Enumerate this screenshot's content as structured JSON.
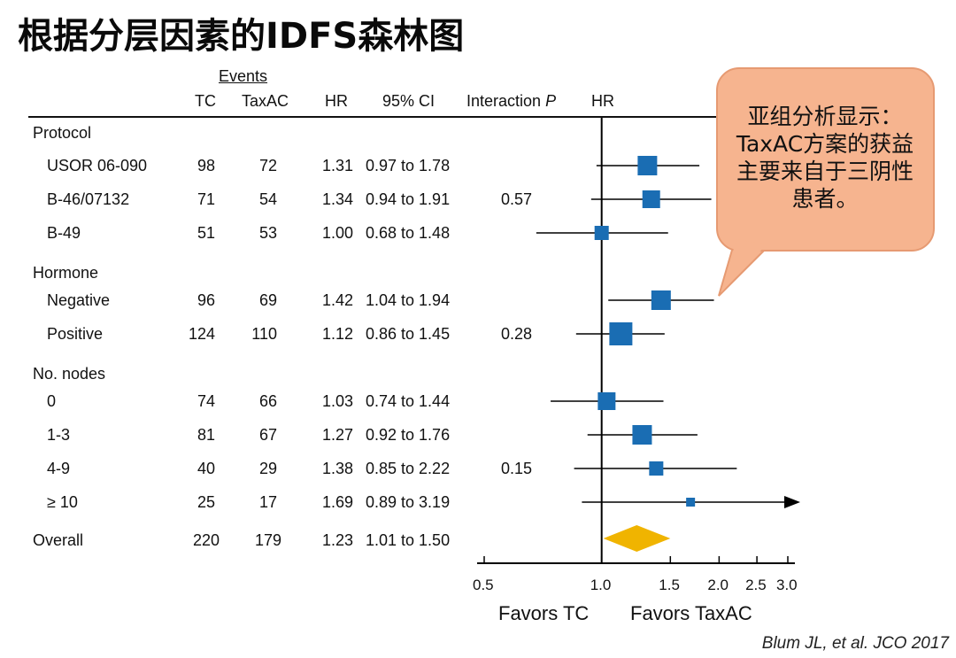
{
  "title": "根据分层因素的IDFS森林图",
  "headers": {
    "events": "Events",
    "tc": "TC",
    "taxac": "TaxAC",
    "hr": "HR",
    "ci": "95% CI",
    "interaction": "Interaction",
    "interaction_p": "P",
    "hr_plot": "HR"
  },
  "callout": "亚组分析显示：TaxAC方案的获益主要来自于三阴性患者。",
  "citation": "Blum JL, et al. JCO 2017",
  "chart_data": {
    "type": "forest",
    "groups": [
      {
        "label": "Protocol",
        "rows": [
          {
            "label": "USOR 06-090",
            "tc": "98",
            "taxac": "72",
            "hr": 1.31,
            "hr_text": "1.31",
            "ci_low": 0.97,
            "ci_high": 1.78,
            "ci_text": "0.97 to 1.78",
            "interaction_p": ""
          },
          {
            "label": "B-46/07132",
            "tc": "71",
            "taxac": "54",
            "hr": 1.34,
            "hr_text": "1.34",
            "ci_low": 0.94,
            "ci_high": 1.91,
            "ci_text": "0.94 to 1.91",
            "interaction_p": "0.57"
          },
          {
            "label": "B-49",
            "tc": "51",
            "taxac": "53",
            "hr": 1.0,
            "hr_text": "1.00",
            "ci_low": 0.68,
            "ci_high": 1.48,
            "ci_text": "0.68 to 1.48",
            "interaction_p": ""
          }
        ]
      },
      {
        "label": "Hormone",
        "rows": [
          {
            "label": "Negative",
            "tc": "96",
            "taxac": "69",
            "hr": 1.42,
            "hr_text": "1.42",
            "ci_low": 1.04,
            "ci_high": 1.94,
            "ci_text": "1.04 to 1.94",
            "interaction_p": ""
          },
          {
            "label": "Positive",
            "tc": "124",
            "taxac": "110",
            "hr": 1.12,
            "hr_text": "1.12",
            "ci_low": 0.86,
            "ci_high": 1.45,
            "ci_text": "0.86 to 1.45",
            "interaction_p": "0.28"
          }
        ]
      },
      {
        "label": "No. nodes",
        "rows": [
          {
            "label": "0",
            "tc": "74",
            "taxac": "66",
            "hr": 1.03,
            "hr_text": "1.03",
            "ci_low": 0.74,
            "ci_high": 1.44,
            "ci_text": "0.74 to 1.44",
            "interaction_p": ""
          },
          {
            "label": "1-3",
            "tc": "81",
            "taxac": "67",
            "hr": 1.27,
            "hr_text": "1.27",
            "ci_low": 0.92,
            "ci_high": 1.76,
            "ci_text": "0.92 to 1.76",
            "interaction_p": ""
          },
          {
            "label": "4-9",
            "tc": "40",
            "taxac": "29",
            "hr": 1.38,
            "hr_text": "1.38",
            "ci_low": 0.85,
            "ci_high": 2.22,
            "ci_text": "0.85 to 2.22",
            "interaction_p": "0.15"
          },
          {
            "label": "≥ 10",
            "tc": "25",
            "taxac": "17",
            "hr": 1.69,
            "hr_text": "1.69",
            "ci_low": 0.89,
            "ci_high": 3.19,
            "ci_text": "0.89 to 3.19",
            "interaction_p": ""
          }
        ]
      }
    ],
    "overall": {
      "label": "Overall",
      "tc": "220",
      "taxac": "179",
      "hr": 1.23,
      "hr_text": "1.23",
      "ci_low": 1.01,
      "ci_high": 1.5,
      "ci_text": "1.01 to 1.50"
    },
    "x_scale": "log",
    "x_ticks": [
      "0.5",
      "1.0",
      "1.5",
      "2.0",
      "2.5",
      "3.0"
    ],
    "xlim": [
      0.5,
      3.0
    ],
    "reference_line": 1.0,
    "favors_left": "Favors TC",
    "favors_right": "Favors TaxAC",
    "colors": {
      "marker": "#1a6db3",
      "overall_diamond": "#f0b400",
      "line": "#000000"
    }
  }
}
